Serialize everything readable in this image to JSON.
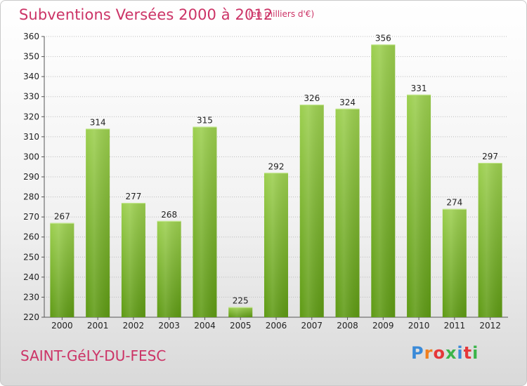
{
  "header": {
    "title": "Subventions Versées 2000 à 2012",
    "unit_note": "(en milliers d'€)"
  },
  "footer": {
    "commune": "SAINT-GéLY-DU-FESC",
    "logo_text": "Proxiti"
  },
  "colors": {
    "bar_top": "#9ccf4f",
    "bar_bottom": "#5e9a14",
    "title": "#cc3366",
    "grid": "#bbbbbb"
  },
  "chart_data": {
    "type": "bar",
    "title": "Subventions Versées 2000 à 2012",
    "categories": [
      "2000",
      "2001",
      "2002",
      "2003",
      "2004",
      "2005",
      "2006",
      "2007",
      "2008",
      "2009",
      "2010",
      "2011",
      "2012"
    ],
    "values": [
      267,
      314,
      277,
      268,
      315,
      225,
      292,
      326,
      324,
      356,
      331,
      274,
      297
    ],
    "ylim": [
      220,
      360
    ],
    "yticks": [
      220,
      230,
      240,
      250,
      260,
      270,
      280,
      290,
      300,
      310,
      320,
      330,
      340,
      350,
      360
    ],
    "grid": true,
    "show_data_labels": true
  }
}
